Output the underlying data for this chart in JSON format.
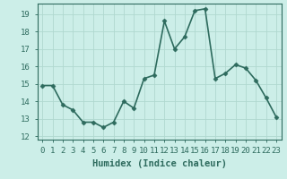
{
  "x": [
    0,
    1,
    2,
    3,
    4,
    5,
    6,
    7,
    8,
    9,
    10,
    11,
    12,
    13,
    14,
    15,
    16,
    17,
    18,
    19,
    20,
    21,
    22,
    23
  ],
  "y": [
    14.9,
    14.9,
    13.8,
    13.5,
    12.8,
    12.8,
    12.5,
    12.8,
    14.0,
    13.6,
    15.3,
    15.5,
    18.6,
    17.0,
    17.7,
    19.2,
    19.3,
    15.3,
    15.6,
    16.1,
    15.9,
    15.2,
    14.2,
    13.1
  ],
  "line_color": "#2e6b5e",
  "marker": "D",
  "marker_size": 2.5,
  "bg_color": "#cceee8",
  "grid_color": "#b0d8d0",
  "xlabel": "Humidex (Indice chaleur)",
  "ylim": [
    11.8,
    19.6
  ],
  "xlim": [
    -0.5,
    23.5
  ],
  "yticks": [
    12,
    13,
    14,
    15,
    16,
    17,
    18,
    19
  ],
  "xticks": [
    0,
    1,
    2,
    3,
    4,
    5,
    6,
    7,
    8,
    9,
    10,
    11,
    12,
    13,
    14,
    15,
    16,
    17,
    18,
    19,
    20,
    21,
    22,
    23
  ],
  "xtick_labels": [
    "0",
    "1",
    "2",
    "3",
    "4",
    "5",
    "6",
    "7",
    "8",
    "9",
    "10",
    "11",
    "12",
    "13",
    "14",
    "15",
    "16",
    "17",
    "18",
    "19",
    "20",
    "21",
    "22",
    "23"
  ],
  "axis_label_fontsize": 7.5,
  "tick_fontsize": 6.5,
  "linewidth": 1.2
}
